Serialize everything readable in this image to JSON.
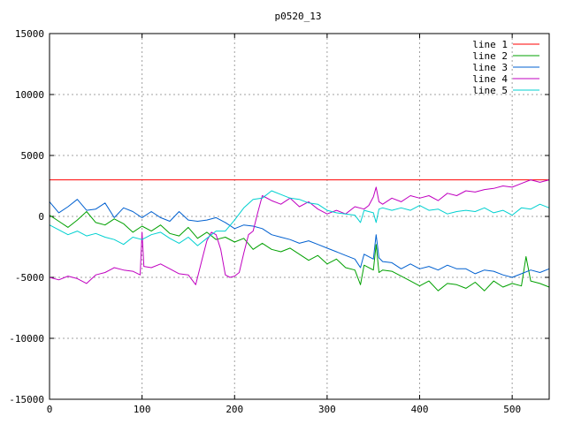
{
  "chart_data": {
    "type": "line",
    "title": "p0520_13",
    "xlabel": "",
    "ylabel": "",
    "xlim": [
      0,
      540
    ],
    "ylim": [
      -15000,
      15000
    ],
    "xticks": [
      0,
      100,
      200,
      300,
      400,
      500
    ],
    "yticks": [
      -15000,
      -10000,
      -5000,
      0,
      5000,
      10000,
      15000
    ],
    "grid": true,
    "legend_position": "top-right",
    "series": [
      {
        "name": "line 1",
        "color": "#ff0000",
        "x": [
          0,
          540
        ],
        "y": [
          3000,
          3000
        ]
      },
      {
        "name": "line 2",
        "color": "#00a000",
        "x": [
          0,
          10,
          20,
          30,
          40,
          50,
          60,
          70,
          80,
          90,
          100,
          110,
          120,
          130,
          140,
          150,
          160,
          170,
          180,
          190,
          200,
          210,
          220,
          230,
          240,
          250,
          260,
          270,
          280,
          290,
          300,
          310,
          320,
          330,
          336,
          340,
          350,
          353,
          356,
          360,
          370,
          380,
          390,
          400,
          410,
          420,
          430,
          440,
          450,
          460,
          470,
          480,
          490,
          500,
          510,
          515,
          520,
          530,
          540
        ],
        "y": [
          100,
          -400,
          -900,
          -300,
          400,
          -500,
          -700,
          -200,
          -600,
          -1300,
          -800,
          -1200,
          -700,
          -1400,
          -1600,
          -900,
          -1800,
          -1300,
          -1900,
          -1700,
          -2100,
          -1800,
          -2700,
          -2200,
          -2700,
          -2900,
          -2600,
          -3100,
          -3600,
          -3200,
          -3900,
          -3500,
          -4200,
          -4400,
          -5600,
          -4000,
          -4400,
          -2300,
          -4600,
          -4400,
          -4500,
          -4900,
          -5300,
          -5700,
          -5300,
          -6100,
          -5500,
          -5600,
          -5900,
          -5400,
          -6100,
          -5300,
          -5800,
          -5500,
          -5700,
          -3300,
          -5300,
          -5500,
          -5800
        ]
      },
      {
        "name": "line 3",
        "color": "#0060d0",
        "x": [
          0,
          10,
          20,
          30,
          40,
          50,
          60,
          70,
          80,
          90,
          100,
          110,
          120,
          130,
          140,
          150,
          160,
          170,
          180,
          190,
          200,
          210,
          220,
          230,
          240,
          250,
          260,
          270,
          280,
          290,
          300,
          310,
          320,
          330,
          336,
          340,
          350,
          353,
          356,
          360,
          370,
          380,
          390,
          400,
          410,
          420,
          430,
          440,
          450,
          460,
          470,
          480,
          490,
          500,
          510,
          520,
          530,
          540
        ],
        "y": [
          1200,
          300,
          800,
          1400,
          500,
          600,
          1100,
          -100,
          700,
          400,
          -100,
          400,
          -100,
          -400,
          400,
          -300,
          -400,
          -300,
          -100,
          -500,
          -1000,
          -700,
          -800,
          -1000,
          -1500,
          -1700,
          -1900,
          -2200,
          -2000,
          -2300,
          -2600,
          -2900,
          -3200,
          -3500,
          -4200,
          -3100,
          -3500,
          -1500,
          -3400,
          -3700,
          -3800,
          -4300,
          -3900,
          -4300,
          -4100,
          -4400,
          -4000,
          -4300,
          -4300,
          -4700,
          -4400,
          -4500,
          -4800,
          -5000,
          -4700,
          -4400,
          -4600,
          -4300
        ]
      },
      {
        "name": "line 4",
        "color": "#c000c0",
        "x": [
          0,
          10,
          20,
          30,
          40,
          50,
          60,
          70,
          80,
          90,
          98,
          100,
          102,
          110,
          120,
          130,
          140,
          150,
          158,
          165,
          170,
          175,
          180,
          185,
          190,
          195,
          200,
          205,
          210,
          215,
          220,
          225,
          230,
          240,
          250,
          260,
          270,
          280,
          290,
          300,
          310,
          320,
          330,
          340,
          345,
          350,
          353,
          356,
          360,
          370,
          380,
          390,
          400,
          410,
          420,
          430,
          440,
          450,
          460,
          470,
          480,
          490,
          500,
          510,
          520,
          530,
          540
        ],
        "y": [
          -5000,
          -5200,
          -4900,
          -5100,
          -5500,
          -4800,
          -4600,
          -4200,
          -4400,
          -4500,
          -4800,
          -1300,
          -4100,
          -4200,
          -3900,
          -4300,
          -4700,
          -4800,
          -5600,
          -3500,
          -2000,
          -1300,
          -1500,
          -2700,
          -4800,
          -5000,
          -4900,
          -4600,
          -3000,
          -1500,
          -1200,
          300,
          1700,
          1300,
          1000,
          1500,
          800,
          1200,
          600,
          200,
          500,
          200,
          800,
          600,
          900,
          1600,
          2400,
          1200,
          1000,
          1500,
          1200,
          1700,
          1500,
          1700,
          1300,
          1900,
          1700,
          2100,
          2000,
          2200,
          2300,
          2500,
          2400,
          2700,
          3000,
          2800,
          3000
        ]
      },
      {
        "name": "line 5",
        "color": "#00d0d0",
        "x": [
          0,
          10,
          20,
          30,
          40,
          50,
          60,
          70,
          80,
          90,
          100,
          110,
          120,
          130,
          140,
          150,
          160,
          170,
          180,
          190,
          200,
          210,
          220,
          230,
          240,
          250,
          260,
          270,
          280,
          290,
          300,
          310,
          320,
          330,
          336,
          340,
          350,
          353,
          356,
          360,
          370,
          380,
          390,
          400,
          410,
          420,
          430,
          440,
          450,
          460,
          470,
          480,
          490,
          500,
          510,
          520,
          530,
          540
        ],
        "y": [
          -700,
          -1100,
          -1500,
          -1200,
          -1600,
          -1400,
          -1700,
          -1900,
          -2300,
          -1700,
          -1900,
          -1500,
          -1300,
          -1800,
          -2200,
          -1700,
          -2400,
          -1800,
          -1200,
          -1200,
          -300,
          700,
          1400,
          1500,
          2100,
          1800,
          1500,
          1400,
          1100,
          1000,
          500,
          300,
          200,
          100,
          -500,
          500,
          300,
          -500,
          600,
          700,
          500,
          700,
          500,
          900,
          500,
          600,
          200,
          400,
          500,
          400,
          700,
          300,
          500,
          100,
          700,
          600,
          1000,
          700
        ]
      }
    ]
  }
}
